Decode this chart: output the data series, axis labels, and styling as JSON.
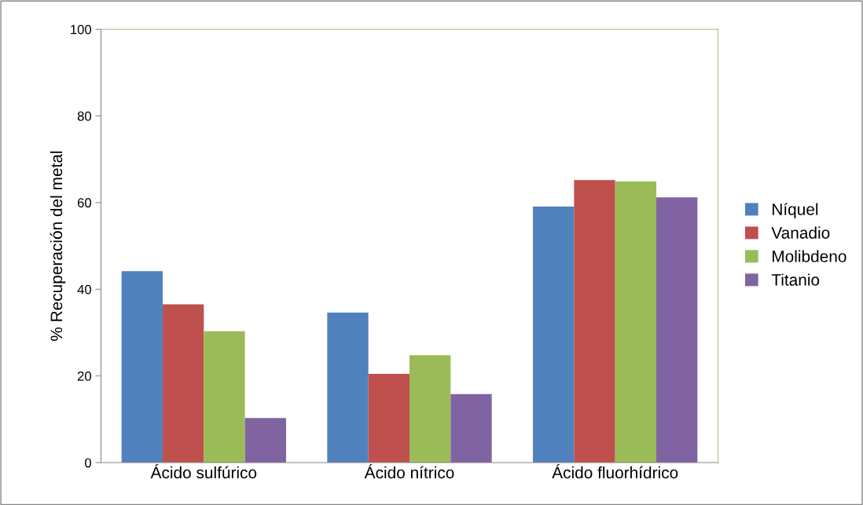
{
  "chart_data": {
    "type": "bar",
    "ylabel": "% Recuperación del metal",
    "categories": [
      "Ácido sulfúrico",
      "Ácido nítrico",
      "Ácido fluorhídrico"
    ],
    "series": [
      {
        "name": "Níquel",
        "color": "#4f81bd",
        "values": [
          44.2,
          34.6,
          59.1
        ]
      },
      {
        "name": "Vanadio",
        "color": "#c0504d",
        "values": [
          36.5,
          20.5,
          65.2
        ]
      },
      {
        "name": "Molibdeno",
        "color": "#9bbb59",
        "values": [
          30.3,
          24.8,
          64.9
        ]
      },
      {
        "name": "Titanio",
        "color": "#8064a2",
        "values": [
          10.3,
          15.8,
          61.2
        ]
      }
    ],
    "ylim": [
      0,
      100
    ],
    "yticks": [
      0,
      20,
      40,
      60,
      80,
      100
    ],
    "grid": false,
    "legend": "right"
  }
}
